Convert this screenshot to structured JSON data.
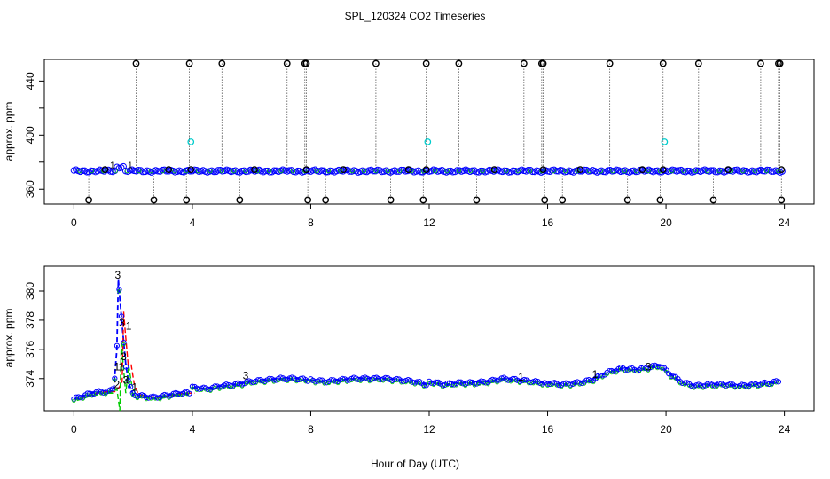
{
  "chart_data": {
    "title": "SPL_120324  CO2 Timeseries",
    "xlabel": "Hour of Day (UTC)",
    "type": "scatter",
    "panels": [
      {
        "name": "top",
        "ylabel": "approx. ppm",
        "xlim": [
          -1,
          25
        ],
        "ylim": [
          349,
          456
        ],
        "xticks": [
          0,
          4,
          8,
          12,
          16,
          20,
          24
        ],
        "xtick_labels": [
          "0",
          "4",
          "8",
          "12",
          "16",
          "20",
          "24"
        ],
        "yticks": [
          360,
          380,
          400,
          420,
          440
        ],
        "ytick_labels": [
          "360",
          "",
          "400",
          "",
          "440"
        ],
        "baseline": 373.5,
        "spikes_high": {
          "value": 453,
          "hours": [
            2.1,
            3.9,
            5.0,
            7.2,
            7.8,
            7.85,
            10.2,
            11.9,
            13.0,
            15.2,
            15.8,
            15.85,
            18.1,
            19.9,
            21.1,
            23.2,
            23.8,
            23.85
          ]
        },
        "spikes_low": {
          "value": 352,
          "hours": [
            0.5,
            2.7,
            3.8,
            5.6,
            7.9,
            8.5,
            10.7,
            11.8,
            13.6,
            15.9,
            16.5,
            18.7,
            19.8,
            21.6,
            23.9
          ]
        },
        "cyan_points": {
          "value": 395,
          "hours": [
            3.95,
            11.95,
            19.95
          ]
        },
        "black_points": {
          "value": 374.5,
          "hours": [
            1.05,
            3.2,
            3.95,
            6.1,
            7.85,
            9.1,
            11.3,
            11.9,
            14.2,
            15.85,
            17.1,
            19.2,
            19.9,
            22.1,
            23.9
          ]
        }
      },
      {
        "name": "bottom",
        "ylabel": "approx. ppm",
        "xlim": [
          -1,
          25
        ],
        "ylim": [
          371.8,
          381.7
        ],
        "xticks": [
          0,
          4,
          8,
          12,
          16,
          20,
          24
        ],
        "xtick_labels": [
          "0",
          "4",
          "8",
          "12",
          "16",
          "20",
          "24"
        ],
        "yticks": [
          374,
          376,
          378,
          380
        ],
        "ytick_labels": [
          "374",
          "376",
          "378",
          "380"
        ],
        "segments": [
          {
            "x": [
              0,
              0.3,
              0.6,
              0.9,
              1.2,
              1.35,
              1.45,
              1.5,
              1.55,
              1.65,
              1.75,
              1.85,
              2.0,
              2.3,
              2.7,
              3.0,
              3.3,
              3.6,
              3.9
            ],
            "y": [
              372.6,
              372.8,
              373.0,
              373.1,
              373.1,
              373.4,
              376.0,
              380.8,
              379.5,
              377.2,
              375.0,
              373.7,
              372.9,
              372.8,
              372.7,
              372.8,
              372.9,
              373.0,
              373.0
            ]
          },
          {
            "x": [
              4,
              4.5,
              5.0,
              5.5,
              6.0,
              6.5,
              7.0,
              7.5,
              7.9
            ],
            "y": [
              373.4,
              373.3,
              373.5,
              373.6,
              373.8,
              373.9,
              374.0,
              374.0,
              373.9
            ]
          },
          {
            "x": [
              8,
              8.5,
              9.0,
              9.5,
              10.0,
              10.5,
              11.0,
              11.5,
              11.9
            ],
            "y": [
              373.9,
              373.8,
              373.9,
              374.0,
              374.0,
              374.0,
              373.9,
              373.8,
              373.6
            ]
          },
          {
            "x": [
              12,
              12.5,
              13.0,
              13.5,
              14.0,
              14.5,
              15.0,
              15.5,
              15.9
            ],
            "y": [
              373.8,
              373.6,
              373.7,
              373.7,
              373.8,
              374.0,
              373.9,
              373.8,
              373.7
            ]
          },
          {
            "x": [
              16,
              16.5,
              17.0,
              17.5,
              18.0,
              18.5,
              19.0,
              19.5,
              19.8,
              20.2,
              20.6,
              21.0,
              21.5,
              22.0,
              22.5,
              23.0,
              23.5,
              23.8
            ],
            "y": [
              373.7,
              373.6,
              373.7,
              373.9,
              374.4,
              374.7,
              374.6,
              374.8,
              374.9,
              374.2,
              373.7,
              373.5,
              373.6,
              373.6,
              373.5,
              373.6,
              373.7,
              373.8
            ]
          }
        ],
        "labels": [
          {
            "text": "3",
            "series": "blue",
            "x": 1.48,
            "y": 381.1
          },
          {
            "text": "3",
            "series": "blue",
            "x": 1.62,
            "y": 377.8
          },
          {
            "text": "1",
            "series": "red",
            "x": 1.85,
            "y": 377.6
          },
          {
            "text": "3",
            "series": "green",
            "x": 1.68,
            "y": 375.5
          },
          {
            "text": "1",
            "series": "red",
            "x": 1.6,
            "y": 374.8
          },
          {
            "text": "1",
            "series": "red",
            "x": 1.45,
            "y": 374.8
          },
          {
            "text": "2",
            "series": "green",
            "x": 1.45,
            "y": 373.6
          },
          {
            "text": "3",
            "series": "blue",
            "x": 1.75,
            "y": 373.9
          },
          {
            "text": "1",
            "series": "red",
            "x": 2.05,
            "y": 373.4
          },
          {
            "text": "3",
            "series": "green",
            "x": 5.8,
            "y": 374.2
          },
          {
            "text": "1",
            "series": "red",
            "x": 15.1,
            "y": 374.1
          },
          {
            "text": "1",
            "series": "red",
            "x": 17.6,
            "y": 374.3
          },
          {
            "text": "3",
            "series": "blue",
            "x": 19.4,
            "y": 374.8
          }
        ],
        "colors": {
          "blue": "#0000ff",
          "red": "#ff0000",
          "green": "#00cc00",
          "cyan": "#00cccc",
          "black": "#000000"
        }
      }
    ]
  }
}
